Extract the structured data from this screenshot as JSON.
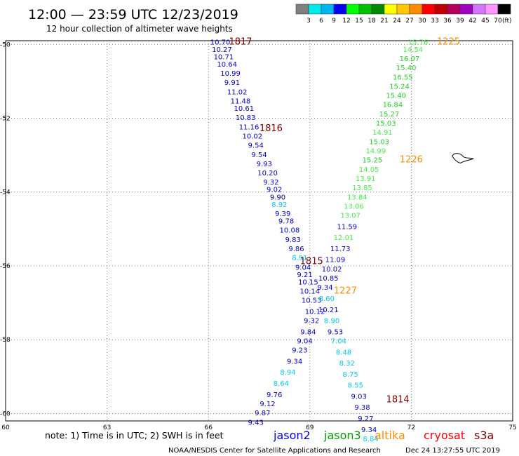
{
  "header": {
    "title": "12:00 — 23:59 UTC 12/23/2019",
    "subtitle": "12 hour collection of altimeter wave heights"
  },
  "legend": {
    "unit": "(ft)",
    "bins": [
      {
        "label": "3",
        "color": "#808080"
      },
      {
        "label": "6",
        "color": "#00e8e8"
      },
      {
        "label": "9",
        "color": "#00b4f0"
      },
      {
        "label": "12",
        "color": "#0000ff"
      },
      {
        "label": "15",
        "color": "#00ff00"
      },
      {
        "label": "18",
        "color": "#00c000"
      },
      {
        "label": "21",
        "color": "#008800"
      },
      {
        "label": "24",
        "color": "#ffff00"
      },
      {
        "label": "27",
        "color": "#ffc800"
      },
      {
        "label": "30",
        "color": "#ff8c00"
      },
      {
        "label": "33",
        "color": "#ff0000"
      },
      {
        "label": "36",
        "color": "#c00000"
      },
      {
        "label": "39",
        "color": "#b4005a"
      },
      {
        "label": "42",
        "color": "#a000c0"
      },
      {
        "label": "45",
        "color": "#d278ff"
      },
      {
        "label": "70",
        "color": "#ff96ff"
      },
      {
        "label": "",
        "color": "#000000"
      }
    ]
  },
  "axes": {
    "lon_ticks": [
      "60",
      "63",
      "66",
      "69",
      "72",
      "75"
    ],
    "lat_ticks": [
      "-50",
      "-52",
      "-54",
      "-56",
      "-58",
      "-60"
    ]
  },
  "footer": {
    "note": "note: 1) Time is in UTC; 2) SWH is in feet",
    "satellites": [
      {
        "name": "jason2",
        "color": "#0000ff"
      },
      {
        "name": "jason3",
        "color": "#00a000"
      },
      {
        "name": "altika",
        "color": "#ff8c00"
      },
      {
        "name": "cryosat",
        "color": "#ff0000"
      },
      {
        "name": "s3a",
        "color": "#8b0000"
      }
    ],
    "credit": "NOAA/NESDIS Center for Satellite Applications and Research",
    "timestamp": "Dec 24 13:27:55 UTC 2019"
  },
  "chart_data": {
    "type": "scatter",
    "title": "12:00 — 23:59 UTC 12/23/2019",
    "subtitle": "12 hour collection of altimeter wave heights",
    "xlim": [
      60,
      75
    ],
    "ylim": [
      -60.2,
      -49.9
    ],
    "x_ticks": [
      60,
      63,
      66,
      69,
      72,
      75
    ],
    "y_ticks": [
      -50,
      -52,
      -54,
      -56,
      -58,
      -60
    ],
    "grid": true,
    "colors": {
      "gray": "#707070",
      "cyan": "#00c8f0",
      "navy": "#00008b",
      "blue": "#0000cd",
      "lime": "#44ee44",
      "green": "#22cc22",
      "dgreen": "#009900",
      "orange": "#ff8c00",
      "maroon": "#800000"
    },
    "labels": [
      {
        "lon": 66.35,
        "lat": -50.0,
        "text": "10.70",
        "c": "blue"
      },
      {
        "lon": 66.4,
        "lat": -50.2,
        "text": "10.27",
        "c": "blue"
      },
      {
        "lon": 66.45,
        "lat": -50.4,
        "text": "10.71",
        "c": "blue"
      },
      {
        "lon": 66.55,
        "lat": -50.6,
        "text": "10.64",
        "c": "blue"
      },
      {
        "lon": 66.65,
        "lat": -50.85,
        "text": "10.99",
        "c": "blue"
      },
      {
        "lon": 66.7,
        "lat": -51.1,
        "text": "9.91",
        "c": "blue"
      },
      {
        "lon": 66.85,
        "lat": -51.35,
        "text": "11.02",
        "c": "blue"
      },
      {
        "lon": 66.95,
        "lat": -51.6,
        "text": "11.48",
        "c": "blue"
      },
      {
        "lon": 67.05,
        "lat": -51.8,
        "text": "10.61",
        "c": "blue"
      },
      {
        "lon": 67.1,
        "lat": -52.05,
        "text": "10.83",
        "c": "blue"
      },
      {
        "lon": 67.2,
        "lat": -52.3,
        "text": "11.16",
        "c": "blue"
      },
      {
        "lon": 67.3,
        "lat": -52.55,
        "text": "10.02",
        "c": "blue"
      },
      {
        "lon": 67.4,
        "lat": -52.8,
        "text": "9.54",
        "c": "blue"
      },
      {
        "lon": 67.5,
        "lat": -53.05,
        "text": "9.54",
        "c": "blue"
      },
      {
        "lon": 67.65,
        "lat": -53.3,
        "text": "9.93",
        "c": "blue"
      },
      {
        "lon": 67.75,
        "lat": -53.55,
        "text": "10.20",
        "c": "blue"
      },
      {
        "lon": 67.85,
        "lat": -53.8,
        "text": "9.32",
        "c": "blue"
      },
      {
        "lon": 67.95,
        "lat": -54.0,
        "text": "9.02",
        "c": "blue"
      },
      {
        "lon": 68.05,
        "lat": -54.2,
        "text": "9.90",
        "c": "navy"
      },
      {
        "lon": 68.1,
        "lat": -54.4,
        "text": "8.92",
        "c": "cyan"
      },
      {
        "lon": 68.2,
        "lat": -54.65,
        "text": "9.39",
        "c": "blue"
      },
      {
        "lon": 68.3,
        "lat": -54.85,
        "text": "9.78",
        "c": "blue"
      },
      {
        "lon": 68.4,
        "lat": -55.1,
        "text": "10.08",
        "c": "blue"
      },
      {
        "lon": 68.5,
        "lat": -55.35,
        "text": "9.83",
        "c": "blue"
      },
      {
        "lon": 68.6,
        "lat": -55.6,
        "text": "9.86",
        "c": "blue"
      },
      {
        "lon": 68.7,
        "lat": -55.85,
        "text": "8.91",
        "c": "cyan"
      },
      {
        "lon": 68.8,
        "lat": -56.1,
        "text": "9.04",
        "c": "blue"
      },
      {
        "lon": 68.85,
        "lat": -56.3,
        "text": "9.21",
        "c": "blue"
      },
      {
        "lon": 68.95,
        "lat": -56.5,
        "text": "10.15",
        "c": "blue"
      },
      {
        "lon": 69.0,
        "lat": -56.75,
        "text": "10.14",
        "c": "blue"
      },
      {
        "lon": 69.05,
        "lat": -57.0,
        "text": "10.53",
        "c": "blue"
      },
      {
        "lon": 69.15,
        "lat": -57.3,
        "text": "10.12",
        "c": "blue"
      },
      {
        "lon": 69.05,
        "lat": -57.55,
        "text": "9.32",
        "c": "blue"
      },
      {
        "lon": 68.95,
        "lat": -57.85,
        "text": "9.84",
        "c": "blue"
      },
      {
        "lon": 68.85,
        "lat": -58.1,
        "text": "9.04",
        "c": "blue"
      },
      {
        "lon": 68.7,
        "lat": -58.35,
        "text": "9.23",
        "c": "blue"
      },
      {
        "lon": 68.55,
        "lat": -58.65,
        "text": "9.34",
        "c": "blue"
      },
      {
        "lon": 68.35,
        "lat": -58.95,
        "text": "8.94",
        "c": "cyan"
      },
      {
        "lon": 68.15,
        "lat": -59.25,
        "text": "8.64",
        "c": "cyan"
      },
      {
        "lon": 67.95,
        "lat": -59.55,
        "text": "9.76",
        "c": "blue"
      },
      {
        "lon": 67.75,
        "lat": -59.8,
        "text": "9.12",
        "c": "blue"
      },
      {
        "lon": 67.6,
        "lat": -60.05,
        "text": "9.87",
        "c": "blue"
      },
      {
        "lon": 67.4,
        "lat": -60.3,
        "text": "9.43",
        "c": "blue"
      },
      {
        "lon": 72.2,
        "lat": -50.0,
        "text": "15.76",
        "c": "lime"
      },
      {
        "lon": 72.05,
        "lat": -50.2,
        "text": "14.54",
        "c": "lime"
      },
      {
        "lon": 71.95,
        "lat": -50.45,
        "text": "16.07",
        "c": "green"
      },
      {
        "lon": 71.85,
        "lat": -50.7,
        "text": "15.40",
        "c": "green"
      },
      {
        "lon": 71.75,
        "lat": -50.95,
        "text": "16.55",
        "c": "green"
      },
      {
        "lon": 71.65,
        "lat": -51.2,
        "text": "15.24",
        "c": "green"
      },
      {
        "lon": 71.55,
        "lat": -51.45,
        "text": "15.40",
        "c": "green"
      },
      {
        "lon": 71.45,
        "lat": -51.7,
        "text": "16.84",
        "c": "green"
      },
      {
        "lon": 71.35,
        "lat": -51.95,
        "text": "15.27",
        "c": "green"
      },
      {
        "lon": 71.25,
        "lat": -52.2,
        "text": "15.03",
        "c": "green"
      },
      {
        "lon": 71.15,
        "lat": -52.45,
        "text": "14.91",
        "c": "lime"
      },
      {
        "lon": 71.05,
        "lat": -52.7,
        "text": "15.03",
        "c": "green"
      },
      {
        "lon": 70.95,
        "lat": -52.95,
        "text": "14.99",
        "c": "lime"
      },
      {
        "lon": 70.85,
        "lat": -53.2,
        "text": "15.25",
        "c": "green"
      },
      {
        "lon": 70.75,
        "lat": -53.45,
        "text": "14.05",
        "c": "lime"
      },
      {
        "lon": 70.65,
        "lat": -53.7,
        "text": "13.91",
        "c": "lime"
      },
      {
        "lon": 70.55,
        "lat": -53.95,
        "text": "13.85",
        "c": "lime"
      },
      {
        "lon": 70.4,
        "lat": -54.2,
        "text": "13.84",
        "c": "lime"
      },
      {
        "lon": 70.3,
        "lat": -54.45,
        "text": "13.06",
        "c": "lime"
      },
      {
        "lon": 70.2,
        "lat": -54.7,
        "text": "13.07",
        "c": "lime"
      },
      {
        "lon": 70.1,
        "lat": -55.0,
        "text": "11.59",
        "c": "blue"
      },
      {
        "lon": 70.0,
        "lat": -55.3,
        "text": "12.01",
        "c": "lime"
      },
      {
        "lon": 69.9,
        "lat": -55.6,
        "text": "11.73",
        "c": "blue"
      },
      {
        "lon": 69.75,
        "lat": -55.9,
        "text": "11.09",
        "c": "blue"
      },
      {
        "lon": 69.65,
        "lat": -56.15,
        "text": "10.02",
        "c": "blue"
      },
      {
        "lon": 69.55,
        "lat": -56.4,
        "text": "10.85",
        "c": "blue"
      },
      {
        "lon": 69.45,
        "lat": -56.65,
        "text": "9.34",
        "c": "blue"
      },
      {
        "lon": 69.5,
        "lat": -56.95,
        "text": "8.60",
        "c": "cyan"
      },
      {
        "lon": 69.55,
        "lat": -57.25,
        "text": "10.21",
        "c": "blue"
      },
      {
        "lon": 69.65,
        "lat": -57.55,
        "text": "8.90",
        "c": "cyan"
      },
      {
        "lon": 69.75,
        "lat": -57.85,
        "text": "9.53",
        "c": "blue"
      },
      {
        "lon": 69.85,
        "lat": -58.1,
        "text": "7.04",
        "c": "cyan"
      },
      {
        "lon": 70.0,
        "lat": -58.4,
        "text": "8.48",
        "c": "cyan"
      },
      {
        "lon": 70.1,
        "lat": -58.7,
        "text": "8.32",
        "c": "cyan"
      },
      {
        "lon": 70.2,
        "lat": -59.0,
        "text": "8.75",
        "c": "cyan"
      },
      {
        "lon": 70.35,
        "lat": -59.3,
        "text": "8.55",
        "c": "cyan"
      },
      {
        "lon": 70.45,
        "lat": -59.6,
        "text": "9.03",
        "c": "blue"
      },
      {
        "lon": 70.55,
        "lat": -59.9,
        "text": "9.38",
        "c": "blue"
      },
      {
        "lon": 70.65,
        "lat": -60.2,
        "text": "9.27",
        "c": "blue"
      },
      {
        "lon": 70.75,
        "lat": -60.5,
        "text": "9.34",
        "c": "blue"
      },
      {
        "lon": 70.8,
        "lat": -60.75,
        "text": "8.84",
        "c": "cyan"
      }
    ],
    "time_markers": [
      {
        "lon": 66.95,
        "lat": -50.0,
        "text": "1817",
        "c": "maroon"
      },
      {
        "lon": 67.85,
        "lat": -52.35,
        "text": "1816",
        "c": "maroon"
      },
      {
        "lon": 69.05,
        "lat": -55.95,
        "text": "1815",
        "c": "maroon"
      },
      {
        "lon": 71.6,
        "lat": -59.7,
        "text": "1814",
        "c": "maroon"
      },
      {
        "lon": 73.1,
        "lat": -50.0,
        "text": "1225",
        "c": "orange"
      },
      {
        "lon": 72.0,
        "lat": -53.2,
        "text": "1226",
        "c": "orange"
      },
      {
        "lon": 70.05,
        "lat": -56.75,
        "text": "1227",
        "c": "orange"
      }
    ],
    "island": {
      "lon": 73.5,
      "lat": -53.1
    }
  }
}
